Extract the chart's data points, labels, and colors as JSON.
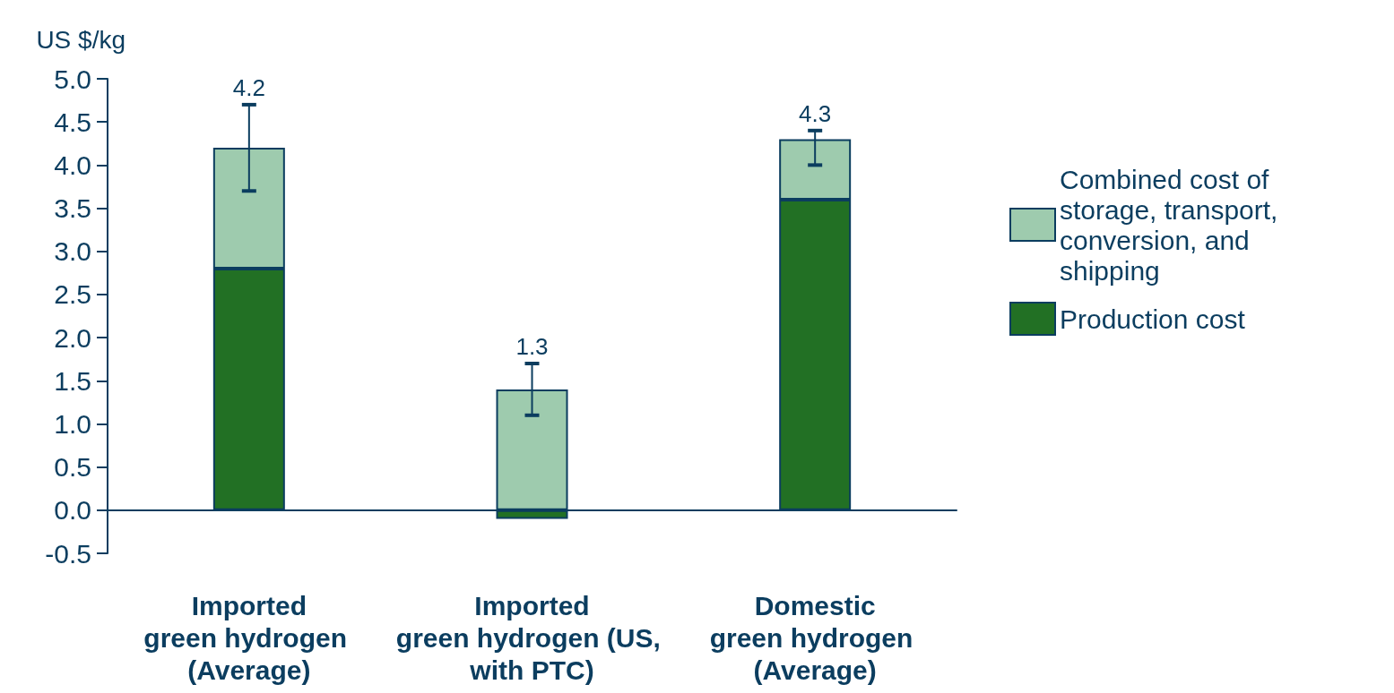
{
  "chart_data": {
    "type": "bar",
    "stacked": true,
    "ylabel": "US $/kg",
    "categories": [
      "Imported green hydrogen (Average)",
      "Imported green hydrogen (US, with PTC)",
      "Domestic green hydrogen (Average)"
    ],
    "series": [
      {
        "name": "Production cost",
        "color": "#227024",
        "values": [
          2.8,
          -0.1,
          3.6
        ]
      },
      {
        "name": "Combined cost of storage, transport, conversion, and shipping",
        "color": "#9ecbae",
        "values": [
          1.4,
          1.4,
          0.7
        ],
        "errors": [
          [
            3.7,
            4.7
          ],
          [
            1.1,
            1.7
          ],
          [
            4.0,
            4.4
          ]
        ]
      }
    ],
    "totals": [
      "4.2",
      "1.3",
      "4.3"
    ],
    "ylim": [
      -0.5,
      5.0
    ],
    "yticks": [
      {
        "value": -0.5,
        "label": "-0.5"
      },
      {
        "value": 0,
        "label": "0.0"
      },
      {
        "value": 0.5,
        "label": "0.5"
      },
      {
        "value": 1,
        "label": "1.0"
      },
      {
        "value": 1.5,
        "label": "1.5"
      },
      {
        "value": 2,
        "label": "2.0"
      },
      {
        "value": 2.5,
        "label": "2.5"
      },
      {
        "value": 3,
        "label": "3.0"
      },
      {
        "value": 3.5,
        "label": "3.5"
      },
      {
        "value": 4,
        "label": "4.0"
      },
      {
        "value": 4.5,
        "label": "4.5"
      },
      {
        "value": 5,
        "label": "5.0"
      }
    ],
    "grid": false,
    "legend": "right"
  }
}
